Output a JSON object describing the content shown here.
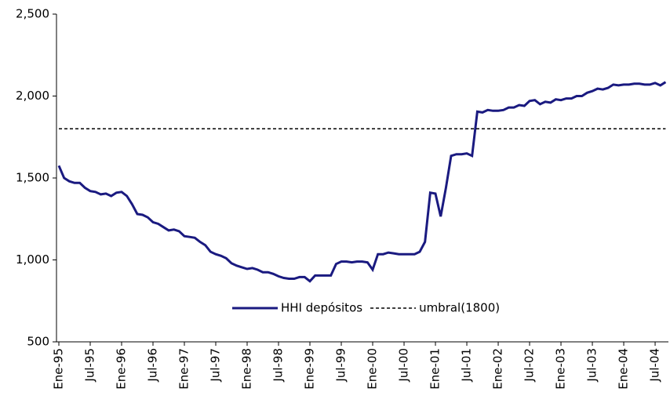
{
  "chart_data": {
    "type": "line",
    "categories": [
      "Ene-95",
      null,
      null,
      null,
      null,
      null,
      "Jul-95",
      null,
      null,
      null,
      null,
      null,
      "Ene-96",
      null,
      null,
      null,
      null,
      null,
      "Jul-96",
      null,
      null,
      null,
      null,
      null,
      "Ene-97",
      null,
      null,
      null,
      null,
      null,
      "Jul-97",
      null,
      null,
      null,
      null,
      null,
      "Ene-98",
      null,
      null,
      null,
      null,
      null,
      "Jul-98",
      null,
      null,
      null,
      null,
      null,
      "Ene-99",
      null,
      null,
      null,
      null,
      null,
      "Jul-99",
      null,
      null,
      null,
      null,
      null,
      "Ene-00",
      null,
      null,
      null,
      null,
      null,
      "Jul-00",
      null,
      null,
      null,
      null,
      null,
      "Ene-01",
      null,
      null,
      null,
      null,
      null,
      "Jul-01",
      null,
      null,
      null,
      null,
      null,
      "Ene-02",
      null,
      null,
      null,
      null,
      null,
      "Jul-02",
      null,
      null,
      null,
      null,
      null,
      "Ene-03",
      null,
      null,
      null,
      null,
      null,
      "Jul-03",
      null,
      null,
      null,
      null,
      null,
      "Ene-04",
      null,
      null,
      null,
      null,
      null,
      "Jul-04",
      null,
      null
    ],
    "series": [
      {
        "name": "HHI depósitos",
        "color": "#1a1a80",
        "style": "solid",
        "values": [
          1575,
          1500,
          1480,
          1470,
          1470,
          1440,
          1420,
          1415,
          1400,
          1405,
          1390,
          1410,
          1415,
          1390,
          1340,
          1280,
          1275,
          1260,
          1230,
          1220,
          1200,
          1180,
          1185,
          1175,
          1145,
          1140,
          1135,
          1110,
          1090,
          1050,
          1035,
          1025,
          1010,
          980,
          965,
          955,
          945,
          950,
          940,
          925,
          925,
          915,
          900,
          890,
          885,
          885,
          895,
          895,
          870,
          905,
          905,
          905,
          905,
          975,
          990,
          990,
          985,
          990,
          990,
          985,
          940,
          1035,
          1035,
          1045,
          1040,
          1035,
          1035,
          1035,
          1035,
          1050,
          1110,
          1410,
          1405,
          1265,
          1440,
          1635,
          1645,
          1645,
          1650,
          1635,
          1905,
          1900,
          1915,
          1910,
          1910,
          1915,
          1930,
          1930,
          1945,
          1940,
          1970,
          1975,
          1950,
          1965,
          1960,
          1980,
          1975,
          1985,
          1985,
          2000,
          2000,
          2020,
          2030,
          2045,
          2040,
          2050,
          2070,
          2065,
          2070,
          2070,
          2075,
          2075,
          2070,
          2070,
          2080,
          2065,
          2085
        ]
      },
      {
        "name": "umbral(1800)",
        "color": "#000000",
        "style": "dashed",
        "values": [
          1800,
          1800,
          1800,
          1800,
          1800,
          1800,
          1800,
          1800,
          1800,
          1800,
          1800,
          1800,
          1800,
          1800,
          1800,
          1800,
          1800,
          1800,
          1800,
          1800,
          1800,
          1800,
          1800,
          1800,
          1800,
          1800,
          1800,
          1800,
          1800,
          1800,
          1800,
          1800,
          1800,
          1800,
          1800,
          1800,
          1800,
          1800,
          1800,
          1800,
          1800,
          1800,
          1800,
          1800,
          1800,
          1800,
          1800,
          1800,
          1800,
          1800,
          1800,
          1800,
          1800,
          1800,
          1800,
          1800,
          1800,
          1800,
          1800,
          1800,
          1800,
          1800,
          1800,
          1800,
          1800,
          1800,
          1800,
          1800,
          1800,
          1800,
          1800,
          1800,
          1800,
          1800,
          1800,
          1800,
          1800,
          1800,
          1800,
          1800,
          1800,
          1800,
          1800,
          1800,
          1800,
          1800,
          1800,
          1800,
          1800,
          1800,
          1800,
          1800,
          1800,
          1800,
          1800,
          1800,
          1800,
          1800,
          1800,
          1800,
          1800,
          1800,
          1800,
          1800,
          1800,
          1800,
          1800,
          1800,
          1800,
          1800,
          1800,
          1800,
          1800,
          1800,
          1800,
          1800,
          1800
        ]
      }
    ],
    "ylim": [
      500,
      2500
    ],
    "yticks": [
      500,
      {
        "value": 1000,
        "label": "1,000"
      },
      {
        "value": 1500,
        "label": "1,500"
      },
      {
        "value": 2000,
        "label": "2,000"
      },
      {
        "value": 2500,
        "label": "2,500"
      }
    ],
    "grid": false
  }
}
